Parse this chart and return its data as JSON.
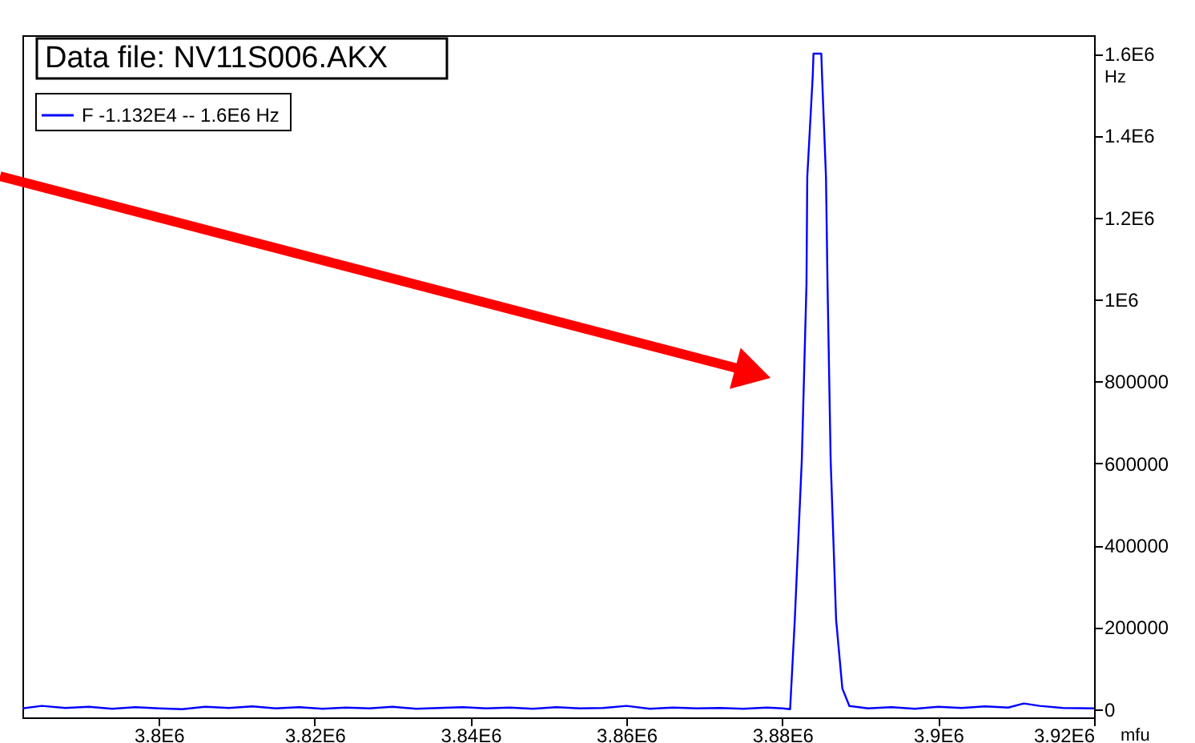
{
  "chart_data": {
    "type": "line",
    "title": "Data file: NV11S006.AKX",
    "xlabel": "mfu",
    "ylabel": "Hz",
    "x": [
      3782500,
      3785000,
      3788000,
      3791000,
      3794000,
      3797000,
      3800000,
      3803000,
      3806000,
      3809000,
      3812000,
      3815000,
      3818000,
      3821000,
      3824000,
      3827000,
      3830000,
      3833000,
      3836000,
      3839000,
      3842000,
      3845000,
      3848000,
      3851000,
      3854000,
      3857000,
      3860000,
      3863000,
      3866000,
      3869000,
      3872000,
      3875000,
      3878000,
      3880000,
      3881000,
      3881600,
      3882500,
      3883100,
      3883200,
      3883900,
      3884000,
      3885000,
      3885100,
      3885600,
      3885800,
      3886200,
      3886900,
      3887700,
      3888600,
      3891000,
      3894000,
      3897000,
      3900000,
      3903000,
      3906000,
      3909000,
      3911000,
      3913000,
      3916000,
      3920000
    ],
    "series": [
      {
        "name": "F  -1.132E4 -- 1.6E6 Hz",
        "color": "#0000ff",
        "values": [
          2000,
          8000,
          3000,
          6000,
          1000,
          5000,
          2000,
          0,
          6000,
          3000,
          7000,
          2000,
          5000,
          1000,
          4000,
          2000,
          6000,
          1000,
          3000,
          5000,
          2000,
          4000,
          1000,
          5000,
          2000,
          3000,
          8000,
          1000,
          4000,
          2000,
          3000,
          1000,
          4000,
          2000,
          0,
          218500,
          608700,
          1038000,
          1299000,
          1545000,
          1600000,
          1600000,
          1545000,
          1299000,
          1038000,
          608700,
          218500,
          50700,
          7800,
          2000,
          5000,
          1000,
          6000,
          3000,
          7000,
          4000,
          14000,
          8000,
          3000,
          2000
        ]
      }
    ],
    "xlim": [
      3782500,
      3920000
    ],
    "xticks": [
      {
        "value": 3800000,
        "label": "3.8E6"
      },
      {
        "value": 3820000,
        "label": "3.82E6"
      },
      {
        "value": 3840000,
        "label": "3.84E6"
      },
      {
        "value": 3860000,
        "label": "3.86E6"
      },
      {
        "value": 3880000,
        "label": "3.88E6"
      },
      {
        "value": 3900000,
        "label": "3.9E6"
      },
      {
        "value": 3920000,
        "label": "3.92E6"
      }
    ],
    "ylim": [
      -20000,
      1645000
    ],
    "yticks": [
      0,
      200000,
      400000,
      600000,
      800000,
      {
        "value": 1000000,
        "label": "1E6"
      },
      {
        "value": 1200000,
        "label": "1.2E6"
      },
      {
        "value": 1400000,
        "label": "1.4E6"
      },
      {
        "value": 1600000,
        "label": "1.6E6"
      }
    ],
    "grid": false,
    "legend": "top left",
    "marker": "none",
    "line_style": "solid"
  }
}
